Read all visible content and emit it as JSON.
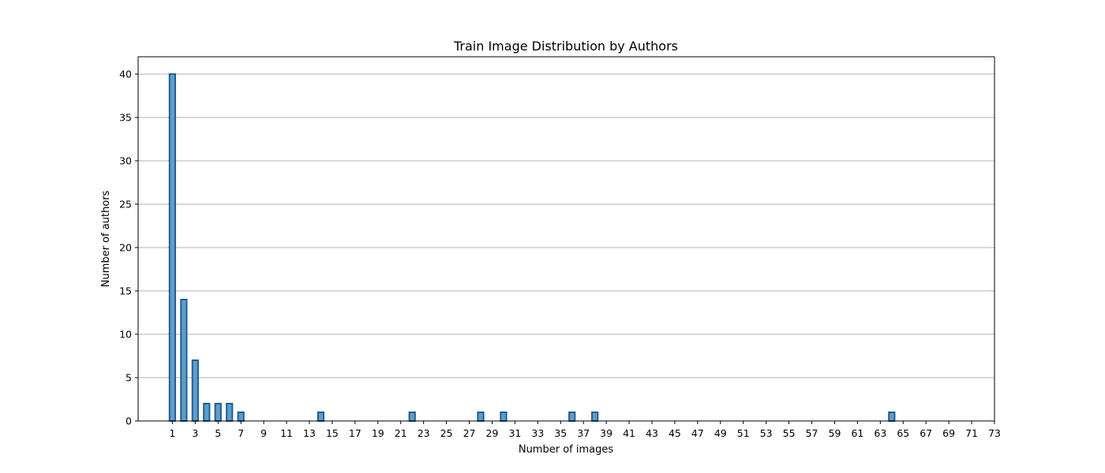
{
  "chart_data": {
    "type": "bar",
    "title": "Train Image Distribution by Authors",
    "xlabel": "Number of images",
    "ylabel": "Number of authors",
    "x": [
      1,
      2,
      3,
      4,
      5,
      6,
      7,
      8,
      9,
      10,
      11,
      12,
      13,
      14,
      15,
      16,
      17,
      18,
      19,
      20,
      21,
      22,
      23,
      24,
      25,
      26,
      27,
      28,
      29,
      30,
      31,
      32,
      33,
      34,
      35,
      36,
      37,
      38,
      39,
      40,
      41,
      42,
      43,
      44,
      45,
      46,
      47,
      48,
      49,
      50,
      51,
      52,
      53,
      54,
      55,
      56,
      57,
      58,
      59,
      60,
      61,
      62,
      63,
      64
    ],
    "values": [
      40,
      14,
      7,
      2,
      2,
      2,
      1,
      0,
      0,
      0,
      0,
      0,
      0,
      1,
      0,
      0,
      0,
      0,
      0,
      0,
      0,
      1,
      0,
      0,
      0,
      0,
      0,
      1,
      0,
      1,
      0,
      0,
      0,
      0,
      0,
      1,
      0,
      1,
      0,
      0,
      0,
      0,
      0,
      0,
      0,
      0,
      0,
      0,
      0,
      0,
      0,
      0,
      0,
      0,
      0,
      0,
      0,
      0,
      0,
      0,
      0,
      0,
      0,
      1
    ],
    "xticks": [
      "1",
      "3",
      "5",
      "7",
      "9",
      "11",
      "13",
      "15",
      "17",
      "19",
      "21",
      "23",
      "25",
      "27",
      "29",
      "31",
      "33",
      "35",
      "37",
      "39",
      "41",
      "43",
      "45",
      "47",
      "49",
      "51",
      "53",
      "55",
      "57",
      "59",
      "61",
      "63",
      "65",
      "67",
      "69",
      "71",
      "73"
    ],
    "yticks": [
      "0",
      "5",
      "10",
      "15",
      "20",
      "25",
      "30",
      "35",
      "40"
    ],
    "xlim": [
      -2,
      73
    ],
    "ylim": [
      0,
      42
    ],
    "grid": "y",
    "colors": {
      "bar_fill": "#5f9ec9",
      "bar_edge": "#1f5f94",
      "grid": "#b0b0b0",
      "axis": "#000000"
    }
  }
}
